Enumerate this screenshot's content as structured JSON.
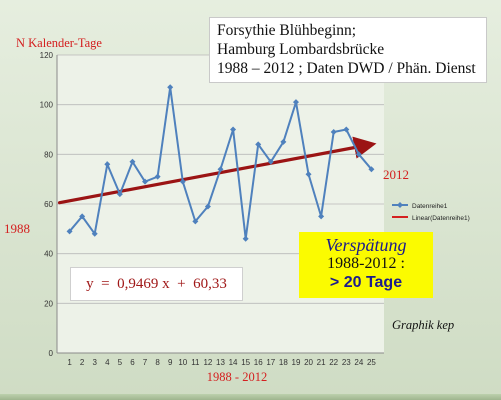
{
  "chart_data": {
    "type": "line",
    "ylabel": "N  Kalender-Tage",
    "xlabel": "1988 - 2012",
    "x": [
      1,
      2,
      3,
      4,
      5,
      6,
      7,
      8,
      9,
      10,
      11,
      12,
      13,
      14,
      15,
      16,
      17,
      18,
      19,
      20,
      21,
      22,
      23,
      24,
      25
    ],
    "xlim": [
      0,
      26
    ],
    "ylim": [
      0,
      120
    ],
    "yticks": [
      0,
      20,
      40,
      60,
      80,
      100,
      120
    ],
    "series": [
      {
        "name": "Datenreihe1",
        "color": "#4f81bd",
        "values": [
          49,
          55,
          48,
          76,
          64,
          77,
          69,
          71,
          107,
          69,
          53,
          59,
          74,
          90,
          46,
          84,
          77,
          85,
          101,
          72,
          55,
          89,
          90,
          80,
          74
        ]
      }
    ],
    "trendline": {
      "name": "Linear(Datenreihe1)",
      "color": "#c0392b",
      "slope": 0.9469,
      "intercept": 60.33
    },
    "grid": true,
    "legend": "right",
    "annotations": {
      "start_year": "1988",
      "end_year": "2012"
    }
  },
  "title_box": {
    "line1": "Forsythie Blühbeginn;",
    "line2": "Hamburg Lombardsbrücke",
    "line3": "1988 – 2012 ; Daten DWD / Phän. Dienst"
  },
  "equation": "y  =  0,9469 x  +  60,33",
  "delay_box": {
    "line1": "Verspätung",
    "line2": "1988-2012 :",
    "line3": "> 20  Tage"
  },
  "credit": "Graphik kep"
}
